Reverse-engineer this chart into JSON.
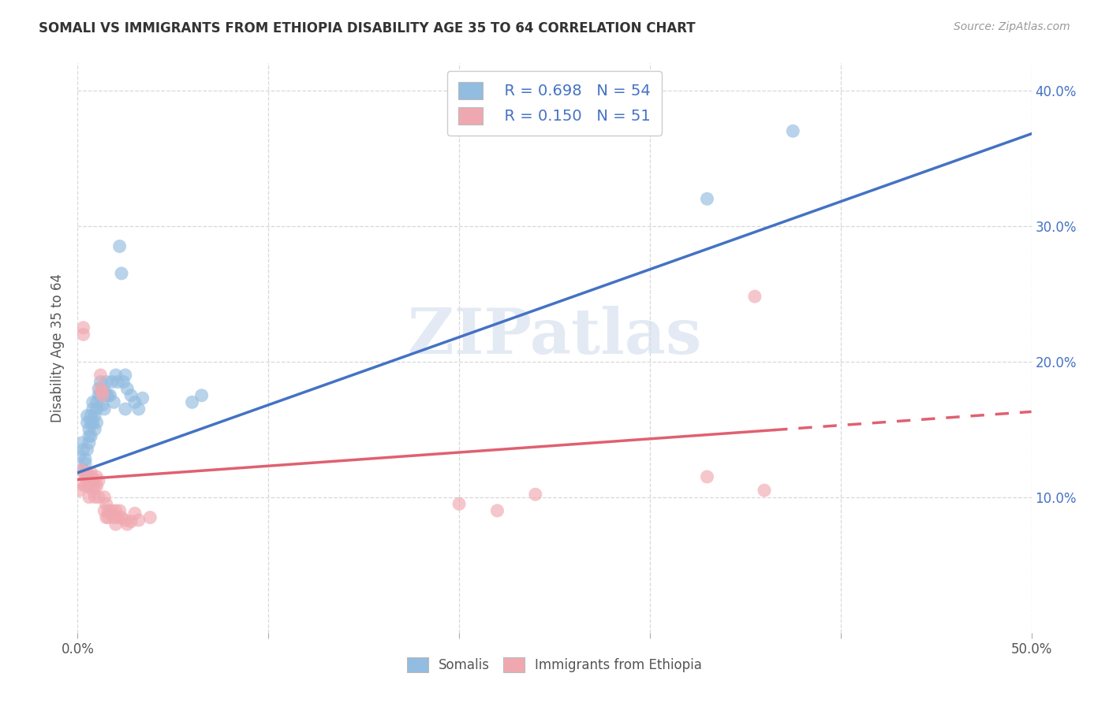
{
  "title": "SOMALI VS IMMIGRANTS FROM ETHIOPIA DISABILITY AGE 35 TO 64 CORRELATION CHART",
  "source": "Source: ZipAtlas.com",
  "ylabel": "Disability Age 35 to 64",
  "xlim": [
    0.0,
    0.5
  ],
  "ylim": [
    0.0,
    0.42
  ],
  "yticks_right": [
    0.1,
    0.2,
    0.3,
    0.4
  ],
  "ytick_labels_right": [
    "10.0%",
    "20.0%",
    "30.0%",
    "40.0%"
  ],
  "somali_R": 0.698,
  "somali_N": 54,
  "ethiopia_R": 0.15,
  "ethiopia_N": 51,
  "somali_color": "#92bce0",
  "ethiopia_color": "#f0a8b0",
  "somali_line_color": "#4472c4",
  "ethiopia_line_color": "#e06070",
  "somali_scatter": [
    [
      0.001,
      0.13
    ],
    [
      0.002,
      0.14
    ],
    [
      0.003,
      0.135
    ],
    [
      0.003,
      0.12
    ],
    [
      0.004,
      0.125
    ],
    [
      0.004,
      0.118
    ],
    [
      0.004,
      0.128
    ],
    [
      0.005,
      0.135
    ],
    [
      0.005,
      0.16
    ],
    [
      0.005,
      0.155
    ],
    [
      0.006,
      0.15
    ],
    [
      0.006,
      0.145
    ],
    [
      0.006,
      0.14
    ],
    [
      0.007,
      0.16
    ],
    [
      0.007,
      0.155
    ],
    [
      0.007,
      0.145
    ],
    [
      0.008,
      0.17
    ],
    [
      0.008,
      0.165
    ],
    [
      0.008,
      0.155
    ],
    [
      0.009,
      0.16
    ],
    [
      0.009,
      0.15
    ],
    [
      0.01,
      0.17
    ],
    [
      0.01,
      0.165
    ],
    [
      0.01,
      0.155
    ],
    [
      0.011,
      0.18
    ],
    [
      0.011,
      0.175
    ],
    [
      0.012,
      0.175
    ],
    [
      0.012,
      0.185
    ],
    [
      0.013,
      0.178
    ],
    [
      0.013,
      0.168
    ],
    [
      0.014,
      0.178
    ],
    [
      0.014,
      0.165
    ],
    [
      0.015,
      0.175
    ],
    [
      0.015,
      0.185
    ],
    [
      0.016,
      0.175
    ],
    [
      0.017,
      0.175
    ],
    [
      0.018,
      0.185
    ],
    [
      0.019,
      0.17
    ],
    [
      0.02,
      0.19
    ],
    [
      0.021,
      0.185
    ],
    [
      0.022,
      0.285
    ],
    [
      0.023,
      0.265
    ],
    [
      0.024,
      0.185
    ],
    [
      0.025,
      0.19
    ],
    [
      0.025,
      0.165
    ],
    [
      0.026,
      0.18
    ],
    [
      0.028,
      0.175
    ],
    [
      0.03,
      0.17
    ],
    [
      0.032,
      0.165
    ],
    [
      0.034,
      0.173
    ],
    [
      0.06,
      0.17
    ],
    [
      0.065,
      0.175
    ],
    [
      0.33,
      0.32
    ],
    [
      0.375,
      0.37
    ]
  ],
  "ethiopia_scatter": [
    [
      0.001,
      0.105
    ],
    [
      0.002,
      0.12
    ],
    [
      0.002,
      0.11
    ],
    [
      0.003,
      0.22
    ],
    [
      0.003,
      0.225
    ],
    [
      0.004,
      0.115
    ],
    [
      0.004,
      0.108
    ],
    [
      0.005,
      0.118
    ],
    [
      0.005,
      0.112
    ],
    [
      0.006,
      0.108
    ],
    [
      0.006,
      0.1
    ],
    [
      0.007,
      0.118
    ],
    [
      0.007,
      0.115
    ],
    [
      0.008,
      0.112
    ],
    [
      0.008,
      0.105
    ],
    [
      0.009,
      0.108
    ],
    [
      0.009,
      0.1
    ],
    [
      0.01,
      0.115
    ],
    [
      0.01,
      0.108
    ],
    [
      0.011,
      0.112
    ],
    [
      0.011,
      0.1
    ],
    [
      0.012,
      0.18
    ],
    [
      0.012,
      0.19
    ],
    [
      0.013,
      0.175
    ],
    [
      0.013,
      0.178
    ],
    [
      0.014,
      0.1
    ],
    [
      0.014,
      0.09
    ],
    [
      0.015,
      0.095
    ],
    [
      0.015,
      0.085
    ],
    [
      0.016,
      0.09
    ],
    [
      0.016,
      0.085
    ],
    [
      0.017,
      0.088
    ],
    [
      0.018,
      0.09
    ],
    [
      0.019,
      0.085
    ],
    [
      0.02,
      0.09
    ],
    [
      0.02,
      0.08
    ],
    [
      0.021,
      0.085
    ],
    [
      0.022,
      0.09
    ],
    [
      0.023,
      0.085
    ],
    [
      0.025,
      0.083
    ],
    [
      0.026,
      0.08
    ],
    [
      0.028,
      0.082
    ],
    [
      0.03,
      0.088
    ],
    [
      0.032,
      0.083
    ],
    [
      0.038,
      0.085
    ],
    [
      0.2,
      0.095
    ],
    [
      0.22,
      0.09
    ],
    [
      0.33,
      0.115
    ],
    [
      0.355,
      0.248
    ],
    [
      0.36,
      0.105
    ],
    [
      0.24,
      0.102
    ]
  ],
  "watermark_text": "ZIPatlas",
  "legend_somali": "Somalis",
  "legend_ethiopia": "Immigrants from Ethiopia",
  "background_color": "#ffffff",
  "grid_color": "#d8d8d8"
}
